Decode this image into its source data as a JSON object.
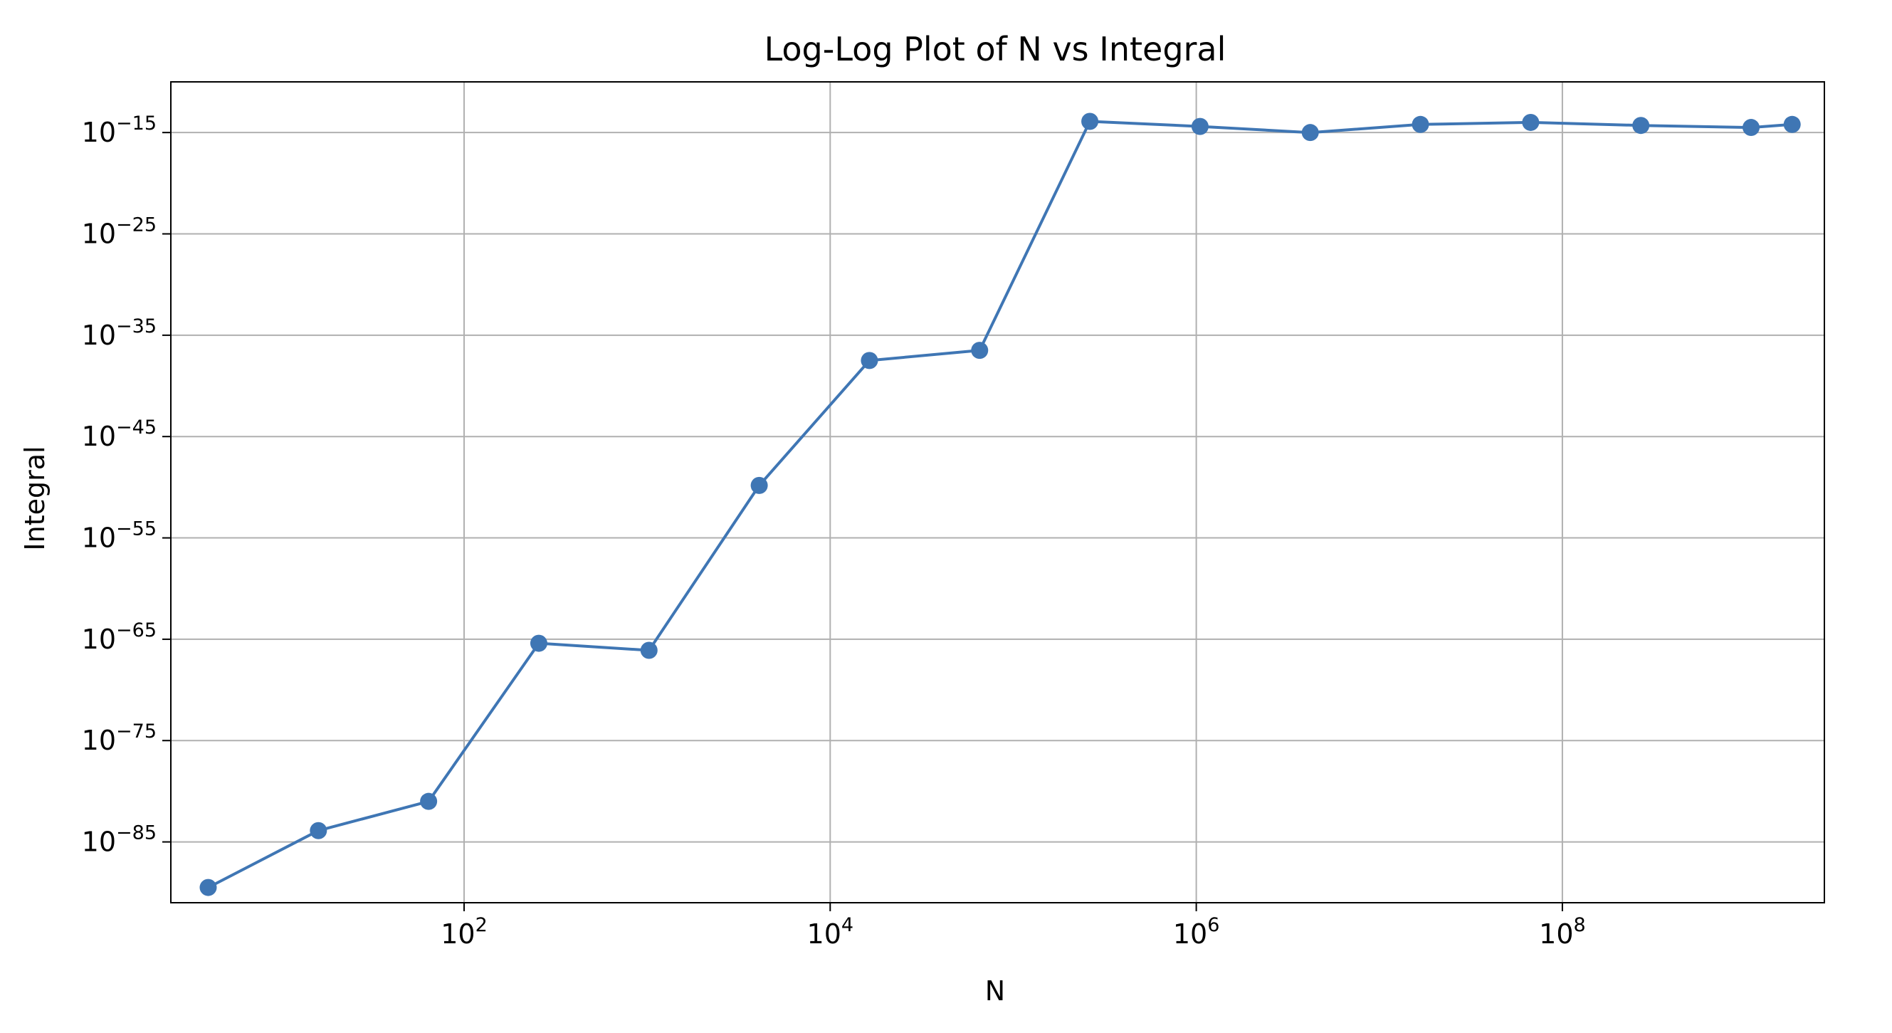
{
  "chart_data": {
    "type": "line",
    "title": "Log-Log Plot of N vs Integral",
    "xlabel": "N",
    "ylabel": "Integral",
    "x_scale": "log",
    "y_scale": "log",
    "xlim": [
      2.5,
      2700000000.0
    ],
    "ylim": [
      1e-91,
      1e-10
    ],
    "grid": true,
    "legend": "none",
    "marker": "circle",
    "line_color": "#3f76b4",
    "x_ticks": [
      {
        "value": 100,
        "base": "10",
        "exp": "2"
      },
      {
        "value": 10000,
        "base": "10",
        "exp": "4"
      },
      {
        "value": 1000000,
        "base": "10",
        "exp": "6"
      },
      {
        "value": 100000000,
        "base": "10",
        "exp": "8"
      }
    ],
    "y_ticks": [
      {
        "value": 1e-15,
        "base": "10",
        "exp": "−15"
      },
      {
        "value": 1e-25,
        "base": "10",
        "exp": "−25"
      },
      {
        "value": 1e-35,
        "base": "10",
        "exp": "−35"
      },
      {
        "value": 1e-45,
        "base": "10",
        "exp": "−45"
      },
      {
        "value": 1e-55,
        "base": "10",
        "exp": "−55"
      },
      {
        "value": 1e-65,
        "base": "10",
        "exp": "−65"
      },
      {
        "value": 1e-75,
        "base": "10",
        "exp": "−75"
      },
      {
        "value": 1e-85,
        "base": "10",
        "exp": "−85"
      }
    ],
    "series": [
      {
        "x": [
          4,
          16,
          64,
          256,
          1024,
          4096,
          16384,
          65536,
          262144,
          1048576,
          4194304,
          16777216,
          67108864,
          268435456,
          1073741824,
          1800000000
        ],
        "y": [
          3.2e-90,
          1.3e-84,
          1e-81,
          4e-66,
          8e-67,
          1.5e-50,
          3.2e-38,
          3.2e-37,
          1.26e-14,
          3.98e-15,
          1e-15,
          6.3e-15,
          1e-14,
          5e-15,
          3.16e-15,
          6.3e-15
        ]
      }
    ]
  }
}
